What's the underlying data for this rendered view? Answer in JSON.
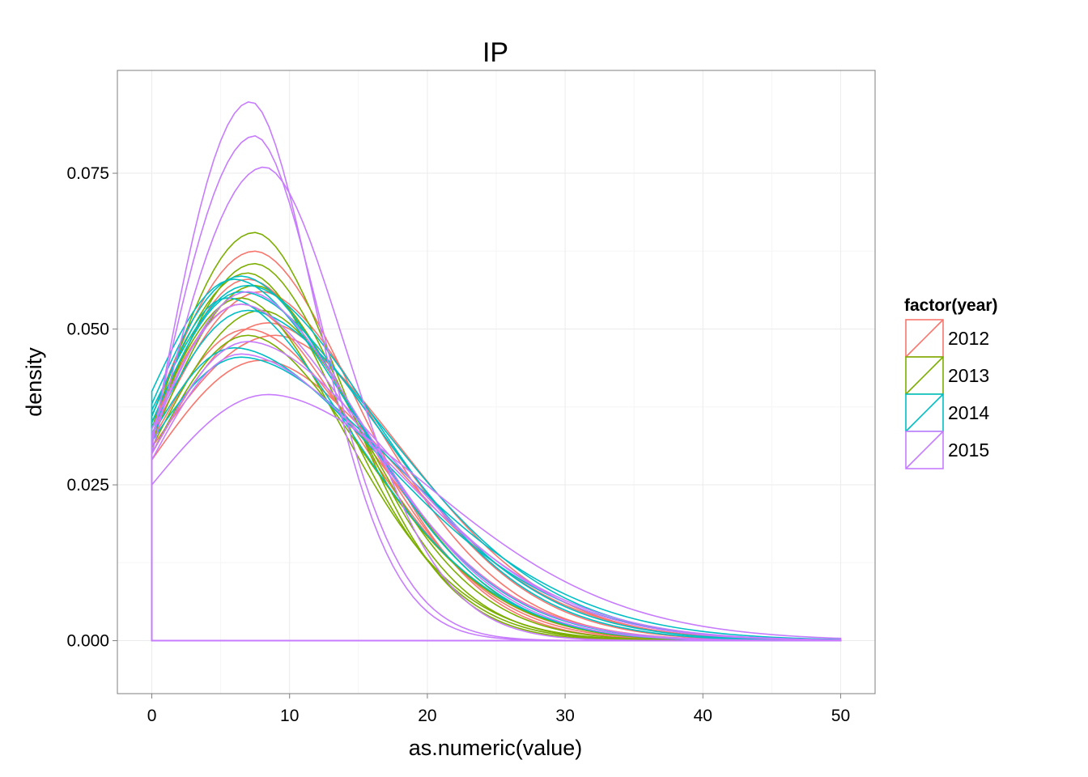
{
  "chart_data": {
    "type": "line",
    "title": "IP",
    "xlabel": "as.numeric(value)",
    "ylabel": "density",
    "xlim": [
      -2.5,
      52.5
    ],
    "ylim": [
      -0.0085,
      0.0915
    ],
    "x_ticks": [
      0,
      10,
      20,
      30,
      40,
      50
    ],
    "x_tick_labels": [
      "0",
      "10",
      "20",
      "30",
      "40",
      "50"
    ],
    "y_ticks": [
      0.0,
      0.025,
      0.05,
      0.075
    ],
    "y_tick_labels": [
      "0.000",
      "0.025",
      "0.050",
      "0.075"
    ],
    "grid": true,
    "legend": {
      "title": "factor(year)",
      "position": "right",
      "entries": [
        {
          "label": "2012",
          "color": "#F8766D"
        },
        {
          "label": "2013",
          "color": "#7CAE00"
        },
        {
          "label": "2014",
          "color": "#00BFC4"
        },
        {
          "label": "2015",
          "color": "#C77CFF"
        }
      ]
    },
    "series_note": "Each curve is a kernel density estimate over x in [0, 50]; y0 = density at x=0, peak_x / peak_y = location and height of the mode, tail = decay width after the mode.",
    "series": [
      {
        "group": "2012",
        "y0": 0.036,
        "peak_x": 7.5,
        "peak_y": 0.0625,
        "tail": 7.5
      },
      {
        "group": "2012",
        "y0": 0.034,
        "peak_x": 7.0,
        "peak_y": 0.058,
        "tail": 8.0
      },
      {
        "group": "2012",
        "y0": 0.033,
        "peak_x": 8.0,
        "peak_y": 0.056,
        "tail": 8.5
      },
      {
        "group": "2012",
        "y0": 0.035,
        "peak_x": 6.5,
        "peak_y": 0.054,
        "tail": 8.5
      },
      {
        "group": "2012",
        "y0": 0.03,
        "peak_x": 8.5,
        "peak_y": 0.051,
        "tail": 9.0
      },
      {
        "group": "2012",
        "y0": 0.032,
        "peak_x": 7.0,
        "peak_y": 0.05,
        "tail": 9.0
      },
      {
        "group": "2012",
        "y0": 0.031,
        "peak_x": 9.0,
        "peak_y": 0.049,
        "tail": 9.5
      },
      {
        "group": "2012",
        "y0": 0.029,
        "peak_x": 8.0,
        "peak_y": 0.045,
        "tail": 10.0
      },
      {
        "group": "2013",
        "y0": 0.034,
        "peak_x": 7.5,
        "peak_y": 0.0655,
        "tail": 6.5
      },
      {
        "group": "2013",
        "y0": 0.033,
        "peak_x": 7.5,
        "peak_y": 0.0605,
        "tail": 7.0
      },
      {
        "group": "2013",
        "y0": 0.036,
        "peak_x": 7.0,
        "peak_y": 0.059,
        "tail": 7.0
      },
      {
        "group": "2013",
        "y0": 0.032,
        "peak_x": 7.5,
        "peak_y": 0.057,
        "tail": 7.5
      },
      {
        "group": "2013",
        "y0": 0.035,
        "peak_x": 6.5,
        "peak_y": 0.055,
        "tail": 7.5
      },
      {
        "group": "2013",
        "y0": 0.031,
        "peak_x": 8.0,
        "peak_y": 0.053,
        "tail": 8.0
      },
      {
        "group": "2013",
        "y0": 0.03,
        "peak_x": 7.0,
        "peak_y": 0.049,
        "tail": 8.5
      },
      {
        "group": "2014",
        "y0": 0.04,
        "peak_x": 6.0,
        "peak_y": 0.058,
        "tail": 9.0
      },
      {
        "group": "2014",
        "y0": 0.038,
        "peak_x": 6.5,
        "peak_y": 0.0585,
        "tail": 8.5
      },
      {
        "group": "2014",
        "y0": 0.037,
        "peak_x": 7.0,
        "peak_y": 0.057,
        "tail": 9.5
      },
      {
        "group": "2014",
        "y0": 0.035,
        "peak_x": 6.5,
        "peak_y": 0.056,
        "tail": 10.0
      },
      {
        "group": "2014",
        "y0": 0.036,
        "peak_x": 5.5,
        "peak_y": 0.055,
        "tail": 9.0
      },
      {
        "group": "2014",
        "y0": 0.034,
        "peak_x": 7.0,
        "peak_y": 0.053,
        "tail": 10.5
      },
      {
        "group": "2014",
        "y0": 0.033,
        "peak_x": 6.0,
        "peak_y": 0.047,
        "tail": 11.0
      },
      {
        "group": "2014",
        "y0": 0.032,
        "peak_x": 6.5,
        "peak_y": 0.0455,
        "tail": 11.5
      },
      {
        "group": "2015",
        "y0": 0.031,
        "peak_x": 7.2,
        "peak_y": 0.0865,
        "tail": 4.8
      },
      {
        "group": "2015",
        "y0": 0.032,
        "peak_x": 7.5,
        "peak_y": 0.081,
        "tail": 5.0
      },
      {
        "group": "2015",
        "y0": 0.03,
        "peak_x": 8.2,
        "peak_y": 0.076,
        "tail": 6.0
      },
      {
        "group": "2015",
        "y0": 0.033,
        "peak_x": 7.0,
        "peak_y": 0.056,
        "tail": 8.5
      },
      {
        "group": "2015",
        "y0": 0.034,
        "peak_x": 6.5,
        "peak_y": 0.054,
        "tail": 9.0
      },
      {
        "group": "2015",
        "y0": 0.03,
        "peak_x": 7.0,
        "peak_y": 0.048,
        "tail": 10.5
      },
      {
        "group": "2015",
        "y0": 0.029,
        "peak_x": 6.5,
        "peak_y": 0.046,
        "tail": 11.0
      },
      {
        "group": "2015",
        "y0": 0.025,
        "peak_x": 8.5,
        "peak_y": 0.0395,
        "tail": 12.0
      }
    ]
  }
}
